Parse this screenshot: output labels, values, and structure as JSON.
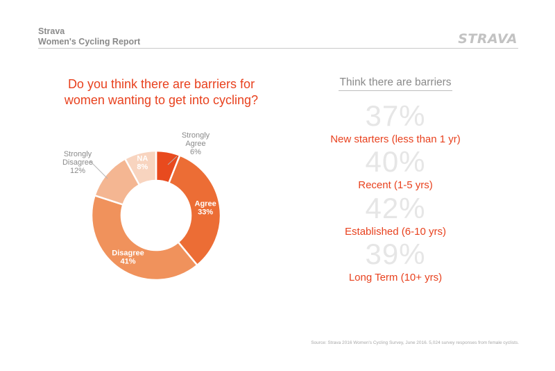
{
  "header": {
    "brand": "Strava",
    "report_title": "Women's Cycling Report",
    "logo_text": "STRAVA"
  },
  "question": {
    "line1": "Do you think there are barriers for",
    "line2": "women wanting to get into cycling?"
  },
  "chart_data": {
    "type": "pie",
    "donut": true,
    "title": "Do you think there are barriers for women wanting to get into cycling?",
    "categories": [
      "Strongly Agree",
      "Agree",
      "Disagree",
      "Strongly Disagree",
      "NA"
    ],
    "values": [
      6,
      33,
      41,
      12,
      8
    ],
    "labels": [
      {
        "lines": [
          "Strongly",
          "Agree",
          "6%"
        ],
        "outside": true
      },
      {
        "lines": [
          "Agree",
          "33%"
        ],
        "outside": false
      },
      {
        "lines": [
          "Disagree",
          "41%"
        ],
        "outside": false
      },
      {
        "lines": [
          "Strongly",
          "Disagree",
          "12%"
        ],
        "outside": true
      },
      {
        "lines": [
          "NA",
          "8%"
        ],
        "outside": false
      }
    ],
    "colors": [
      "#e84a1e",
      "#ec6d35",
      "#f0925c",
      "#f4b692",
      "#f8d4bf"
    ],
    "label_colors": {
      "inside": "#ffffff",
      "outside": "#8a8a8a",
      "leader": "#b5b5b5"
    }
  },
  "barriers": {
    "title": "Think there are barriers",
    "items": [
      {
        "pct": "37%",
        "label": "New starters (less than 1 yr)"
      },
      {
        "pct": "40%",
        "label": "Recent (1-5 yrs)"
      },
      {
        "pct": "42%",
        "label": "Established (6-10 yrs)"
      },
      {
        "pct": "39%",
        "label": "Long Term (10+ yrs)"
      }
    ]
  },
  "source": "Source: Strava 2016 Women's Cycling Survey, June 2016. 5,024 survey responses from female cyclists."
}
